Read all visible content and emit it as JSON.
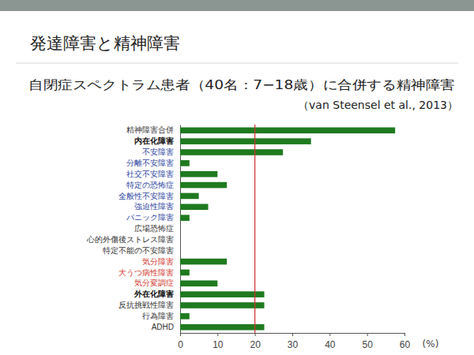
{
  "slide_title": "発達障害と精神障害",
  "chart_data": {
    "type": "bar",
    "orientation": "horizontal",
    "title": "自閉症スペクトラム患者（40名：7−18歳）に合併する精神障害",
    "subtitle": "（van Steensel et al., 2013）",
    "x_label": "(%)",
    "categories": [
      "精神障害合併",
      "内在化障害",
      "不安障害",
      "分離不安障害",
      "社交不安障害",
      "特定の恐怖症",
      "全般性不安障害",
      "強迫性障害",
      "パニック障害",
      "広場恐怖症",
      "心的外傷後ストレス障害",
      "特定不能の不安障害",
      "気分障害",
      "大うつ病性障害",
      "気分変調症",
      "外在化障害",
      "反抗挑戦性障害",
      "行為障害",
      "ADHD"
    ],
    "values": [
      57.5,
      35,
      27.5,
      2.5,
      10,
      12.5,
      5,
      7.5,
      2.5,
      0,
      0,
      0,
      12.5,
      2.5,
      10,
      22.5,
      22.5,
      2.5,
      22.5
    ],
    "color": "#1f7a1f",
    "xlim": [
      0,
      60
    ],
    "xticks": [
      0,
      10,
      20,
      30,
      40,
      50,
      60
    ],
    "reference_line": 20,
    "grid": false
  }
}
